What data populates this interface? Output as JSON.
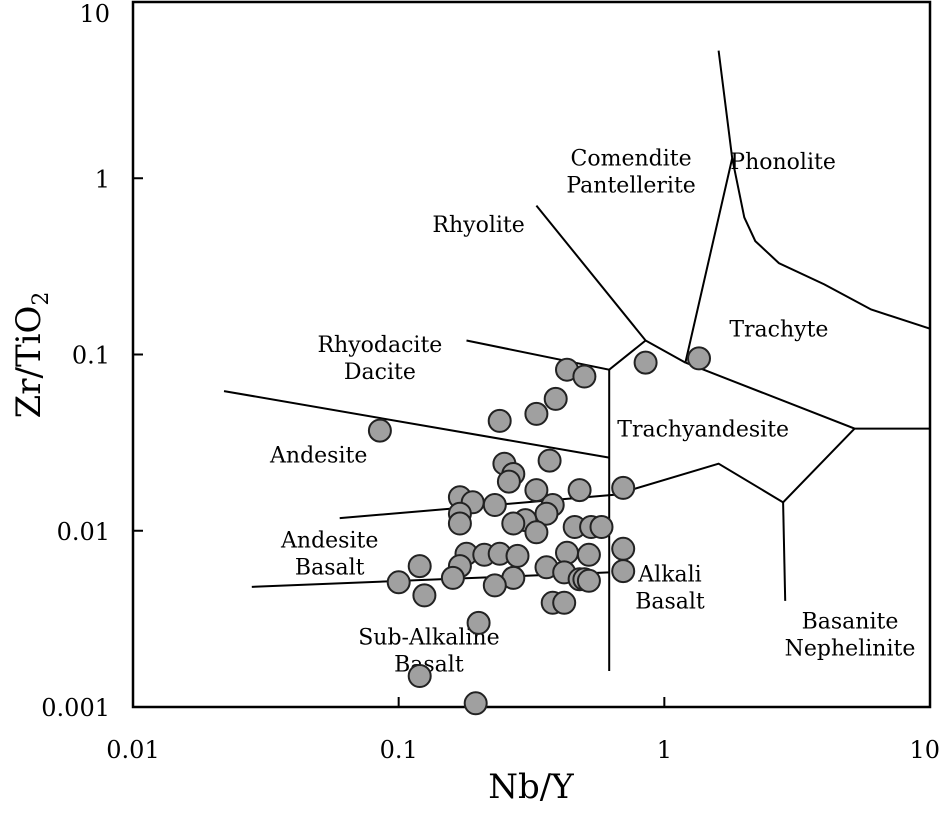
{
  "chart_data": {
    "type": "scatter",
    "title": "",
    "xlabel": "Nb/Y",
    "ylabel_main": "Zr/TiO",
    "ylabel_sub": "2",
    "xscale": "log",
    "yscale": "log",
    "xlim": [
      0.01,
      10
    ],
    "ylim": [
      0.001,
      10
    ],
    "x_ticks": [
      {
        "value": 0.01,
        "label": "0.01"
      },
      {
        "value": 0.1,
        "label": "0.1"
      },
      {
        "value": 1,
        "label": "1"
      },
      {
        "value": 10,
        "label": "10"
      }
    ],
    "y_ticks": [
      {
        "value": 0.001,
        "label": "0.001"
      },
      {
        "value": 0.01,
        "label": "0.01"
      },
      {
        "value": 0.1,
        "label": "0.1"
      },
      {
        "value": 1,
        "label": "1"
      },
      {
        "value": 10,
        "label": "10"
      }
    ],
    "regions": [
      {
        "name": "phonolite",
        "lines": [
          "Phonolite"
        ],
        "x": 2.8,
        "y": 1.25
      },
      {
        "name": "comendite-pantellerite",
        "lines": [
          "Comendite",
          "Pantellerite"
        ],
        "x": 0.75,
        "y": 1.1
      },
      {
        "name": "rhyolite",
        "lines": [
          "Rhyolite"
        ],
        "x": 0.2,
        "y": 0.55
      },
      {
        "name": "trachyte",
        "lines": [
          "Trachyte"
        ],
        "x": 2.7,
        "y": 0.14
      },
      {
        "name": "rhyodacite-dacite",
        "lines": [
          "Rhyodacite",
          "Dacite"
        ],
        "x": 0.085,
        "y": 0.096
      },
      {
        "name": "trachyandesite",
        "lines": [
          "Trachyandesite"
        ],
        "x": 1.4,
        "y": 0.038
      },
      {
        "name": "andesite",
        "lines": [
          "Andesite"
        ],
        "x": 0.05,
        "y": 0.027
      },
      {
        "name": "andesite-basalt",
        "lines": [
          "Andesite",
          "Basalt"
        ],
        "x": 0.055,
        "y": 0.0075
      },
      {
        "name": "alkali-basalt",
        "lines": [
          "Alkali",
          "Basalt"
        ],
        "x": 1.05,
        "y": 0.0048
      },
      {
        "name": "basanite-nephelinite",
        "lines": [
          "Basanite",
          "Nephelinite"
        ],
        "x": 5.0,
        "y": 0.0026
      },
      {
        "name": "sub-alkaline-basalt",
        "lines": [
          "Sub-Alkaline",
          "Basalt"
        ],
        "x": 0.13,
        "y": 0.0021
      }
    ],
    "boundaries": [
      {
        "name": "comendite-rhyolite-boundary",
        "points": [
          [
            0.33,
            0.7
          ],
          [
            0.85,
            0.12
          ],
          [
            1.2,
            0.09
          ]
        ]
      },
      {
        "name": "trachyte-comendite-boundary",
        "points": [
          [
            1.2,
            0.09
          ],
          [
            1.8,
            1.3
          ],
          [
            1.6,
            5.3
          ]
        ]
      },
      {
        "name": "phonolite-trachyte-boundary",
        "points": [
          [
            1.8,
            1.3
          ],
          [
            2.0,
            0.6
          ],
          [
            2.2,
            0.44
          ],
          [
            2.7,
            0.33
          ],
          [
            4.0,
            0.25
          ],
          [
            6.0,
            0.18
          ],
          [
            10,
            0.14
          ]
        ]
      },
      {
        "name": "trachyte-trachyandesite-boundary",
        "points": [
          [
            1.2,
            0.09
          ],
          [
            5.2,
            0.038
          ],
          [
            10,
            0.038
          ]
        ]
      },
      {
        "name": "trachyandesite-alkali-basalt-boundary",
        "points": [
          [
            0.65,
            0.016
          ],
          [
            1.6,
            0.024
          ],
          [
            2.8,
            0.0145
          ],
          [
            5.2,
            0.038
          ]
        ]
      },
      {
        "name": "basanite-alkali-basalt-boundary",
        "points": [
          [
            2.8,
            0.0145
          ],
          [
            2.85,
            0.004
          ]
        ]
      },
      {
        "name": "rhyolite-rhyodacite-boundary",
        "points": [
          [
            0.18,
            0.12
          ],
          [
            0.62,
            0.082
          ],
          [
            0.85,
            0.12
          ]
        ]
      },
      {
        "name": "subalkaline-alkaline-divide",
        "points": [
          [
            0.62,
            0.082
          ],
          [
            0.62,
            0.0016
          ]
        ]
      },
      {
        "name": "rhyodacite-andesite-boundary",
        "points": [
          [
            0.022,
            0.062
          ],
          [
            0.62,
            0.026
          ]
        ]
      },
      {
        "name": "andesite-andesite-basalt-boundary",
        "points": [
          [
            0.06,
            0.0118
          ],
          [
            0.65,
            0.016
          ]
        ]
      },
      {
        "name": "andesite-basalt-sub-alkaline-boundary",
        "points": [
          [
            0.028,
            0.0048
          ],
          [
            0.62,
            0.0058
          ]
        ]
      }
    ],
    "series": [
      {
        "name": "samples",
        "points": [
          [
            1.35,
            0.095
          ],
          [
            0.85,
            0.09
          ],
          [
            0.43,
            0.082
          ],
          [
            0.5,
            0.075
          ],
          [
            0.39,
            0.056
          ],
          [
            0.33,
            0.046
          ],
          [
            0.24,
            0.042
          ],
          [
            0.085,
            0.037
          ],
          [
            0.37,
            0.025
          ],
          [
            0.25,
            0.024
          ],
          [
            0.27,
            0.021
          ],
          [
            0.26,
            0.019
          ],
          [
            0.33,
            0.017
          ],
          [
            0.7,
            0.0175
          ],
          [
            0.48,
            0.017
          ],
          [
            0.17,
            0.0155
          ],
          [
            0.19,
            0.0145
          ],
          [
            0.23,
            0.014
          ],
          [
            0.38,
            0.014
          ],
          [
            0.36,
            0.0125
          ],
          [
            0.17,
            0.0125
          ],
          [
            0.3,
            0.0115
          ],
          [
            0.17,
            0.011
          ],
          [
            0.27,
            0.011
          ],
          [
            0.46,
            0.0105
          ],
          [
            0.53,
            0.0105
          ],
          [
            0.58,
            0.0105
          ],
          [
            0.33,
            0.0098
          ],
          [
            0.7,
            0.0079
          ],
          [
            0.18,
            0.0074
          ],
          [
            0.21,
            0.0073
          ],
          [
            0.24,
            0.0074
          ],
          [
            0.28,
            0.0072
          ],
          [
            0.43,
            0.0075
          ],
          [
            0.52,
            0.0073
          ],
          [
            0.12,
            0.0063
          ],
          [
            0.17,
            0.0063
          ],
          [
            0.36,
            0.0062
          ],
          [
            0.42,
            0.0058
          ],
          [
            0.7,
            0.0059
          ],
          [
            0.16,
            0.0054
          ],
          [
            0.27,
            0.0054
          ],
          [
            0.48,
            0.0053
          ],
          [
            0.5,
            0.0053
          ],
          [
            0.52,
            0.0052
          ],
          [
            0.1,
            0.0051
          ],
          [
            0.23,
            0.0049
          ],
          [
            0.125,
            0.0043
          ],
          [
            0.38,
            0.0039
          ],
          [
            0.42,
            0.0039
          ],
          [
            0.2,
            0.003
          ],
          [
            0.12,
            0.0015
          ],
          [
            0.195,
            0.00105
          ]
        ]
      }
    ]
  }
}
